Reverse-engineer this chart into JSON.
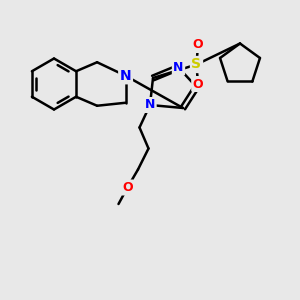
{
  "bg_color": "#e8e8e8",
  "bond_color": "#000000",
  "bond_width": 1.8,
  "atom_colors": {
    "N": "#0000ff",
    "S": "#cccc00",
    "O": "#ff0000",
    "C": "#000000"
  },
  "font_size": 9,
  "fig_size": [
    3.0,
    3.0
  ],
  "dpi": 100,
  "xlim": [
    0,
    10
  ],
  "ylim": [
    0,
    10
  ]
}
